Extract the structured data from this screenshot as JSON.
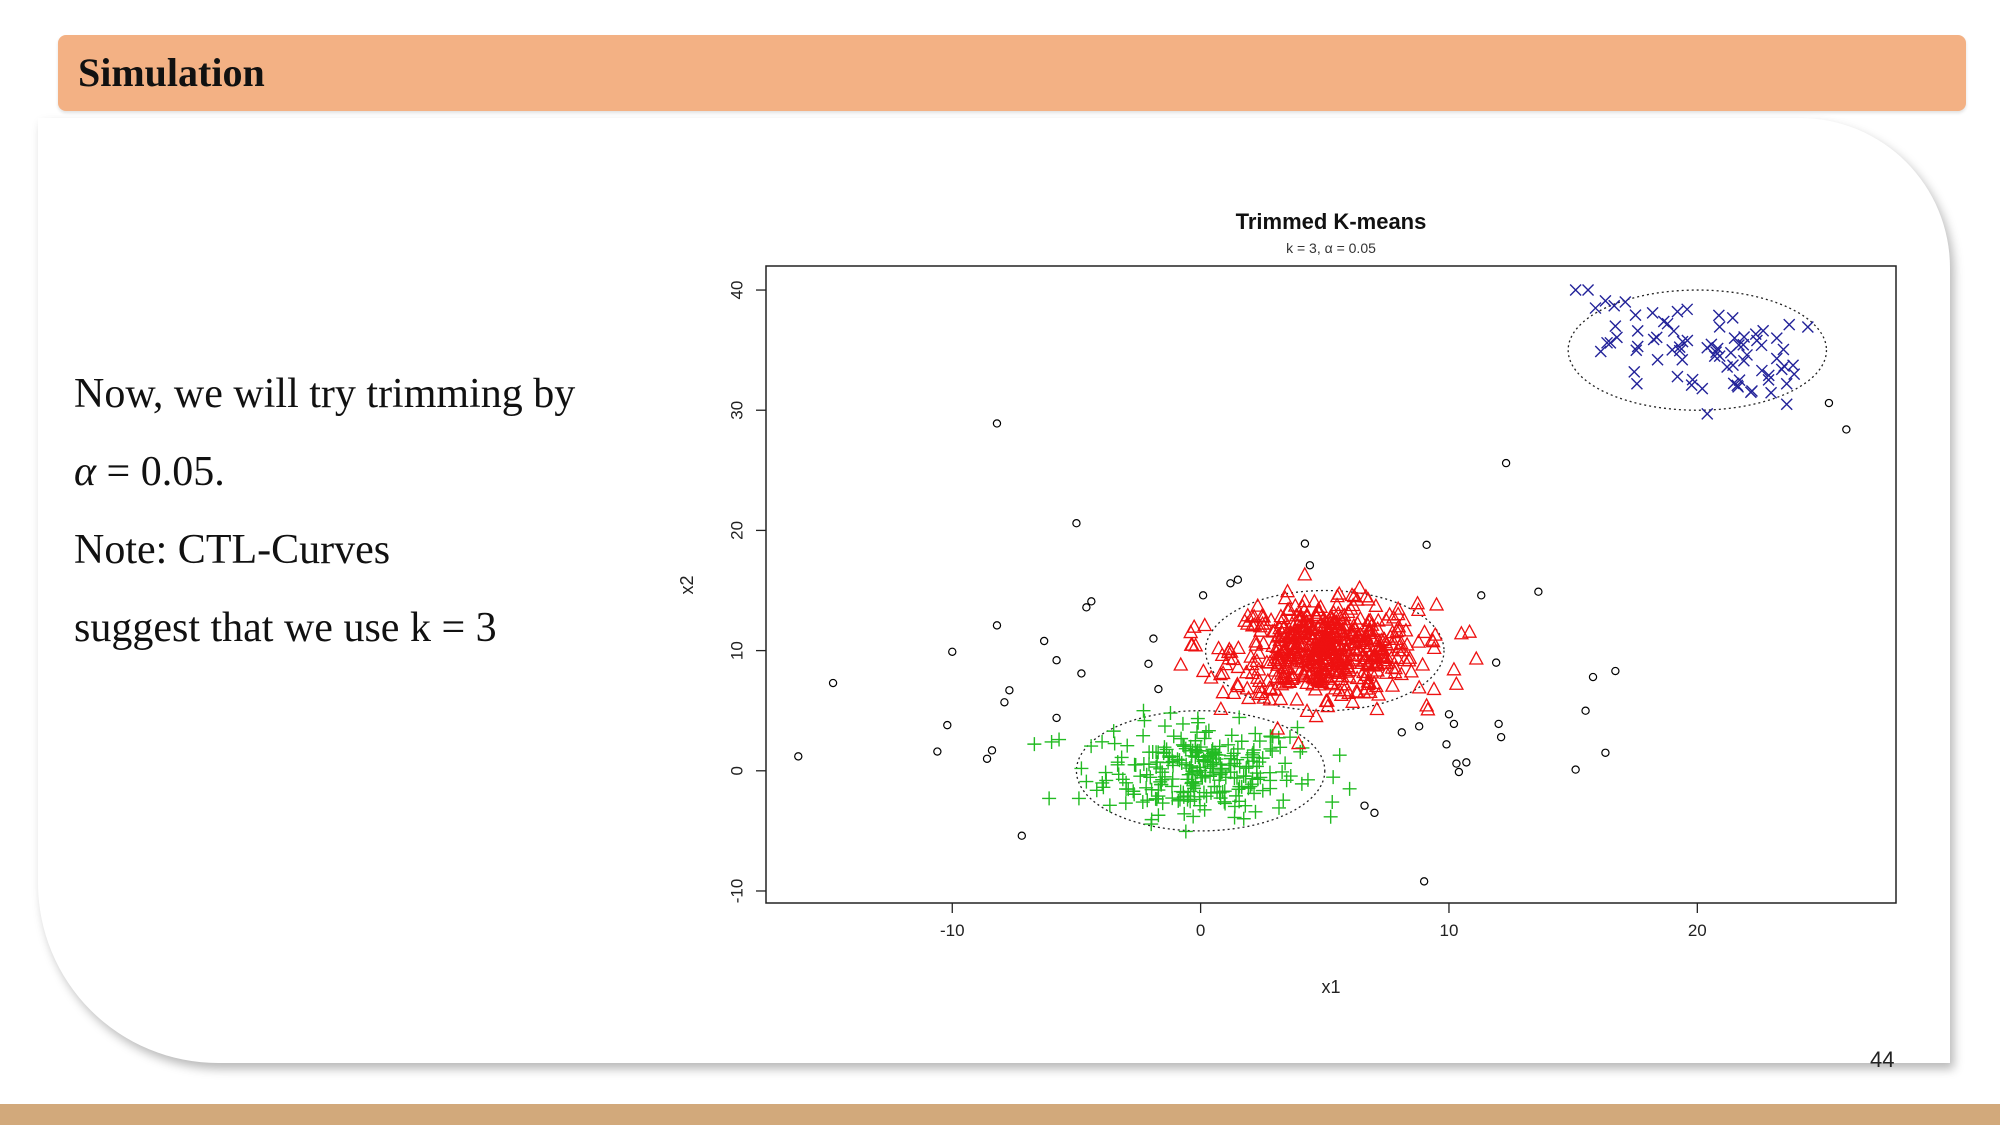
{
  "slide": {
    "title": "Simulation",
    "text_lines": {
      "line1": "Now, we will try trimming by",
      "alpha_symbol": "α",
      "alpha_rest": " = 0.05.",
      "line3": "Note: CTL-Curves",
      "line4": "suggest that we use k = 3"
    },
    "page_number": "44"
  },
  "colors": {
    "title_bar": "#f3b184",
    "bottom_bar": "#d2a97b",
    "cluster_green": "#22bb22",
    "cluster_red": "#ee1111",
    "cluster_blue": "#222299",
    "outliers": "#000000"
  },
  "chart_data": {
    "type": "scatter",
    "title": "Trimmed K-means",
    "subtitle": "k = 3, α = 0.05",
    "xlabel": "x1",
    "ylabel": "x2",
    "xlim": [
      -17.5,
      28
    ],
    "ylim": [
      -11,
      42
    ],
    "xticks": [
      -10,
      0,
      10,
      20
    ],
    "yticks": [
      -10,
      0,
      10,
      20,
      30,
      40
    ],
    "grid": false,
    "legend": "none",
    "clusters": [
      {
        "marker": "plus",
        "color": "#22bb22",
        "center": [
          0,
          0
        ],
        "ellipse": {
          "rx": 5,
          "ry": 5
        },
        "approx_points": 260,
        "points": [
          [
            -6.1,
            -2.3
          ],
          [
            -5.7,
            2.6
          ],
          [
            -6.0,
            2.4
          ],
          [
            -4.9,
            -2.3
          ],
          [
            -3.5,
            3.3
          ],
          [
            -2.3,
            5.0
          ],
          [
            -0.1,
            4.0
          ],
          [
            2.2,
            3.1
          ],
          [
            3.6,
            2.8
          ],
          [
            4.1,
            1.9
          ],
          [
            5.3,
            -2.6
          ],
          [
            6.0,
            -1.5
          ],
          [
            -1.7,
            -1.6
          ],
          [
            -3.0,
            -1.0
          ],
          [
            -3.8,
            -0.8
          ],
          [
            -1.7,
            -3.7
          ],
          [
            -0.9,
            -2.5
          ],
          [
            -0.3,
            -3.8
          ],
          [
            1.8,
            -2.9
          ],
          [
            2.8,
            -0.8
          ],
          [
            3.9,
            3.6
          ],
          [
            -4.8,
            0.2
          ],
          [
            -4.6,
            -0.9
          ],
          [
            5.6,
            1.3
          ]
        ]
      },
      {
        "marker": "triangle",
        "color": "#ee1111",
        "center": [
          5,
          10
        ],
        "ellipse": {
          "rx": 4.8,
          "ry": 5
        },
        "approx_points": 560,
        "points": [
          [
            -0.4,
            11.5
          ],
          [
            -0.8,
            8.8
          ],
          [
            0.9,
            6.5
          ],
          [
            2.3,
            13.7
          ],
          [
            3.5,
            14.9
          ],
          [
            6.4,
            15.2
          ],
          [
            8.2,
            12.5
          ],
          [
            9.5,
            13.8
          ],
          [
            10.5,
            11.4
          ],
          [
            11.1,
            9.3
          ],
          [
            10.3,
            7.2
          ],
          [
            9.1,
            5.4
          ],
          [
            7.1,
            5.1
          ],
          [
            5.1,
            5.8
          ],
          [
            2.8,
            5.9
          ],
          [
            1.5,
            7.0
          ],
          [
            0.8,
            8.0
          ],
          [
            -0.2,
            10.4
          ],
          [
            1.9,
            12.9
          ],
          [
            10.2,
            8.4
          ],
          [
            8.8,
            6.9
          ],
          [
            6.3,
            14.2
          ]
        ]
      },
      {
        "marker": "cross",
        "color": "#222299",
        "center": [
          20,
          35
        ],
        "ellipse": {
          "rx": 5.2,
          "ry": 5
        },
        "approx_points": 80,
        "points": [
          [
            15.1,
            40.0
          ],
          [
            15.6,
            40.0
          ],
          [
            15.9,
            38.5
          ],
          [
            16.3,
            39.1
          ],
          [
            16.7,
            37.0
          ],
          [
            17.1,
            39.0
          ],
          [
            17.6,
            36.6
          ],
          [
            18.2,
            38.1
          ],
          [
            18.8,
            37.2
          ],
          [
            19.2,
            38.2
          ],
          [
            19.6,
            35.8
          ],
          [
            20.4,
            35.2
          ],
          [
            20.9,
            34.5
          ],
          [
            21.5,
            36.0
          ],
          [
            22.0,
            34.6
          ],
          [
            22.6,
            33.3
          ],
          [
            23.2,
            36.0
          ],
          [
            23.4,
            33.4
          ],
          [
            23.6,
            32.2
          ],
          [
            23.6,
            30.5
          ],
          [
            23.9,
            33.0
          ],
          [
            21.7,
            32.5
          ],
          [
            20.2,
            31.8
          ],
          [
            19.2,
            32.8
          ],
          [
            18.4,
            34.2
          ],
          [
            17.6,
            35.3
          ],
          [
            16.5,
            35.6
          ],
          [
            22.2,
            31.6
          ],
          [
            20.4,
            29.7
          ],
          [
            23.2,
            34.3
          ],
          [
            22.4,
            35.8
          ],
          [
            21.2,
            33.6
          ]
        ]
      }
    ],
    "trimmed_points": {
      "marker": "circle",
      "color": "#000000",
      "points": [
        [
          -16.2,
          1.2
        ],
        [
          -14.8,
          7.3
        ],
        [
          -8.2,
          28.9
        ],
        [
          -10.0,
          9.9
        ],
        [
          -10.6,
          1.6
        ],
        [
          -10.2,
          3.8
        ],
        [
          -8.2,
          12.1
        ],
        [
          -8.4,
          1.7
        ],
        [
          -8.6,
          1.0
        ],
        [
          -7.9,
          5.7
        ],
        [
          -7.7,
          6.7
        ],
        [
          -7.2,
          -5.4
        ],
        [
          -6.3,
          10.8
        ],
        [
          -5.8,
          9.2
        ],
        [
          -5.8,
          4.4
        ],
        [
          -5.0,
          20.6
        ],
        [
          -4.8,
          8.1
        ],
        [
          -4.6,
          13.6
        ],
        [
          -4.4,
          14.1
        ],
        [
          -2.1,
          8.9
        ],
        [
          -1.9,
          11.0
        ],
        [
          -1.7,
          6.8
        ],
        [
          0.1,
          14.6
        ],
        [
          1.2,
          15.6
        ],
        [
          1.5,
          15.9
        ],
        [
          4.2,
          18.9
        ],
        [
          4.4,
          17.1
        ],
        [
          6.6,
          -2.9
        ],
        [
          7.0,
          -3.5
        ],
        [
          8.1,
          3.2
        ],
        [
          8.8,
          3.7
        ],
        [
          9.0,
          -9.2
        ],
        [
          9.1,
          18.8
        ],
        [
          9.9,
          2.2
        ],
        [
          10.0,
          4.7
        ],
        [
          10.2,
          3.9
        ],
        [
          10.3,
          0.6
        ],
        [
          10.7,
          0.7
        ],
        [
          10.4,
          -0.1
        ],
        [
          11.3,
          14.6
        ],
        [
          11.9,
          9.0
        ],
        [
          12.0,
          3.9
        ],
        [
          12.1,
          2.8
        ],
        [
          12.3,
          25.6
        ],
        [
          13.6,
          14.9
        ],
        [
          15.1,
          0.1
        ],
        [
          15.5,
          5.0
        ],
        [
          15.8,
          7.8
        ],
        [
          16.3,
          1.5
        ],
        [
          16.7,
          8.3
        ],
        [
          25.3,
          30.6
        ],
        [
          26.0,
          28.4
        ]
      ]
    }
  }
}
